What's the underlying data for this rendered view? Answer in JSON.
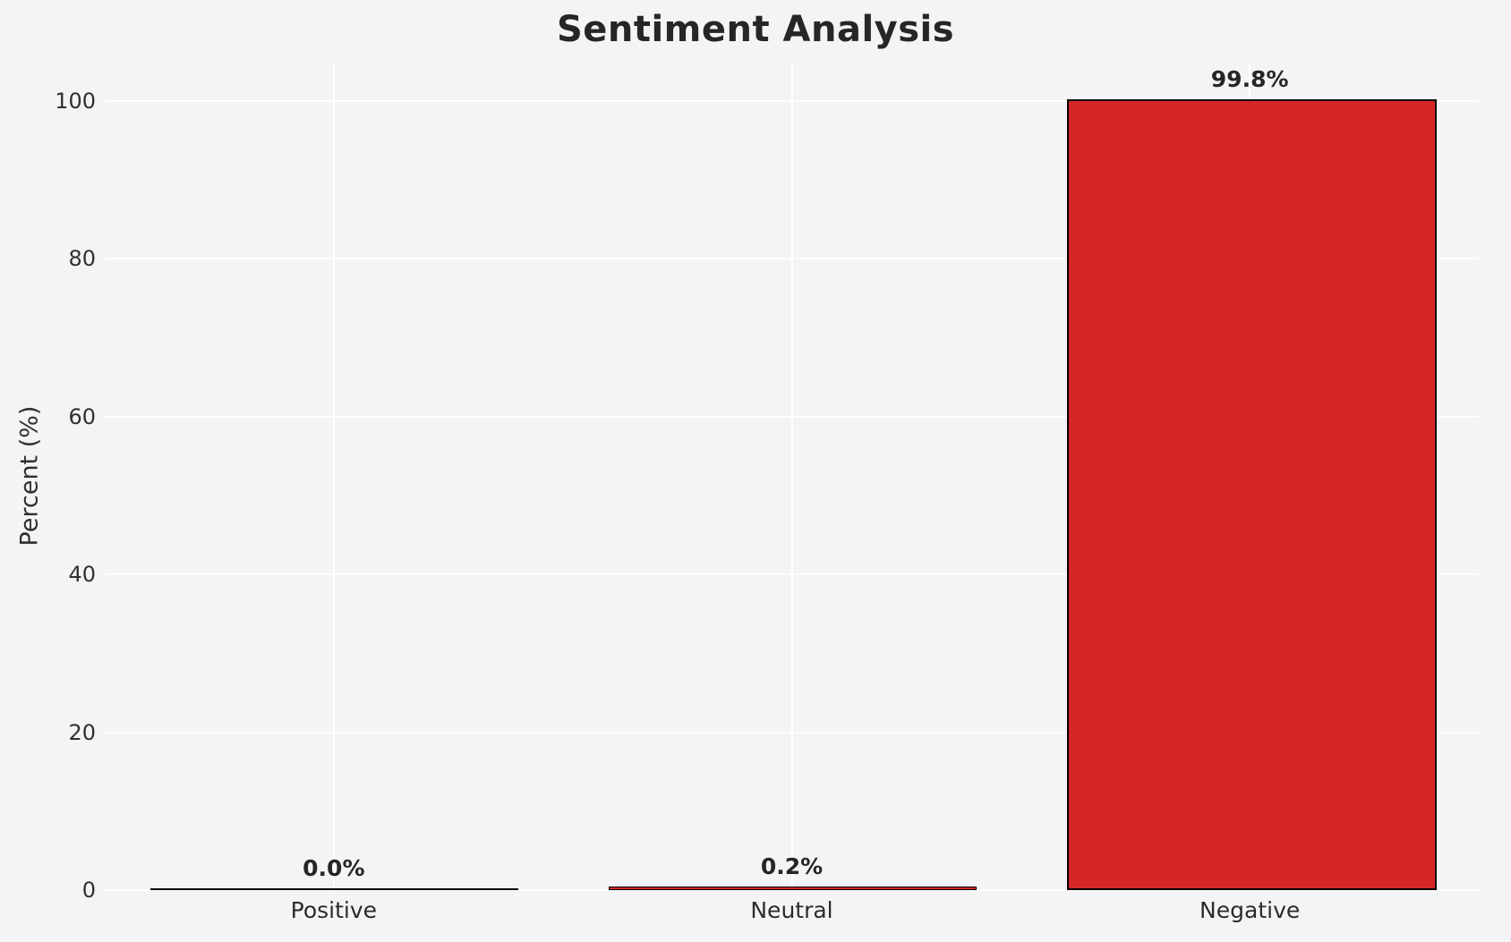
{
  "chart_data": {
    "type": "bar",
    "title": "Sentiment Analysis",
    "xlabel": "",
    "ylabel": "Percent (%)",
    "categories": [
      "Positive",
      "Neutral",
      "Negative"
    ],
    "values": [
      0.0,
      0.2,
      99.8
    ],
    "value_labels": [
      "0.0%",
      "0.2%",
      "99.8%"
    ],
    "yticks": [
      0,
      20,
      40,
      60,
      80,
      100
    ],
    "ylim": [
      0,
      105
    ],
    "grid": true,
    "legend_position": "none",
    "colors": {
      "bar_fill": "#d62728",
      "bar_edge": "#000000",
      "background": "#f4f4f6",
      "gridline": "#ffffff",
      "text": "#303030",
      "title_text": "#262626"
    }
  }
}
